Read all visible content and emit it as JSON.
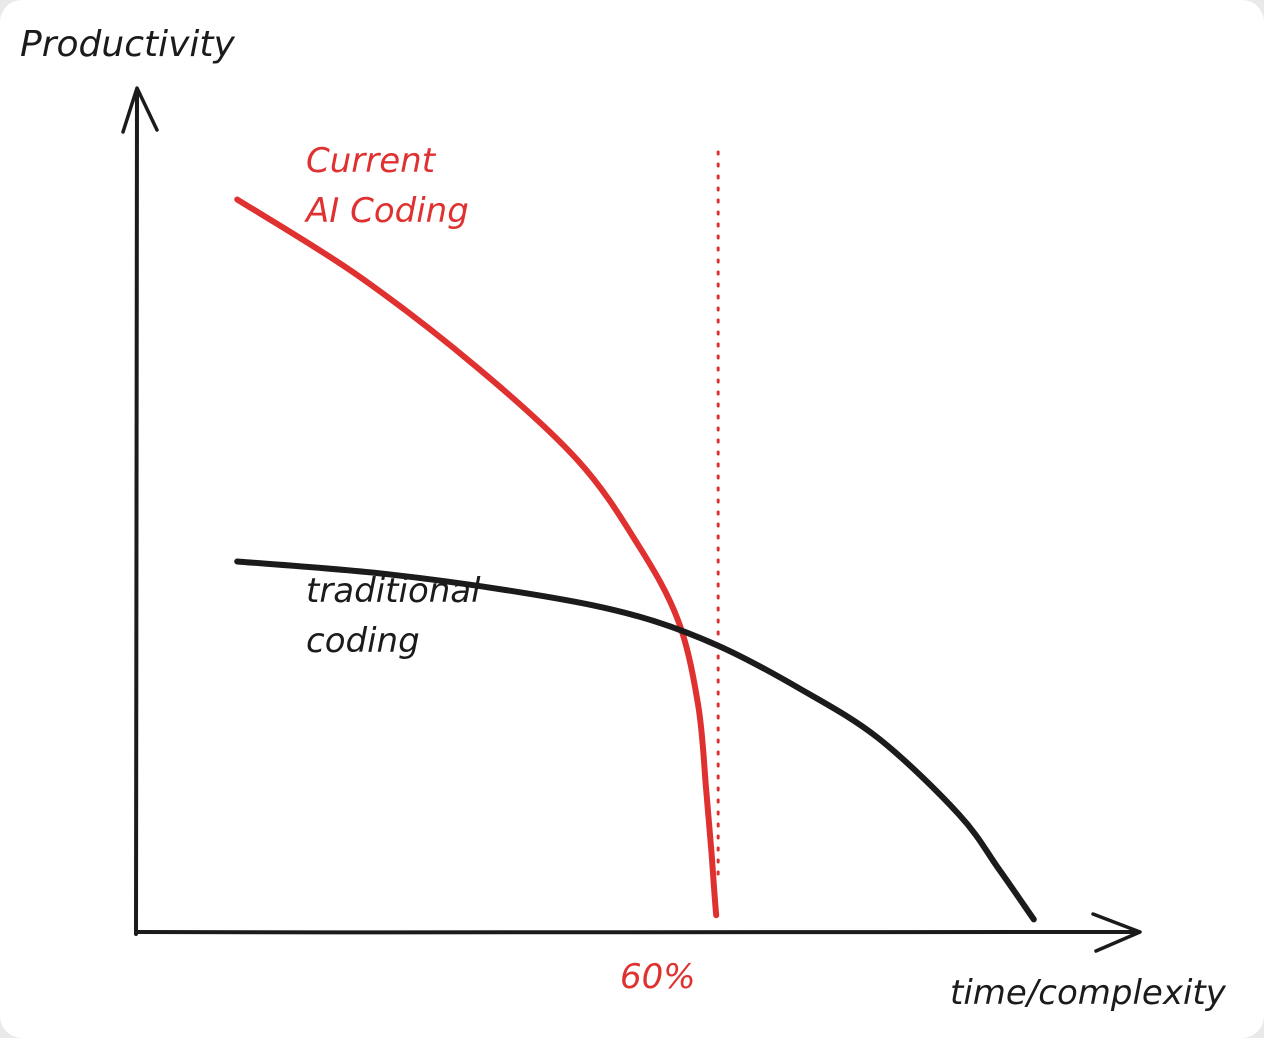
{
  "chart_data": {
    "type": "line",
    "title": "",
    "ylabel": "Productivity",
    "xlabel": "time/complexity",
    "grid": false,
    "legend": "none",
    "xlim": [
      0,
      100
    ],
    "ylim": [
      0,
      100
    ],
    "colors": {
      "ai": "#e03131",
      "traditional": "#1b1b1b",
      "axes": "#1b1b1b"
    },
    "series": [
      {
        "name": "Current AI Coding",
        "label_lines": [
          "Current",
          "AI Coding"
        ],
        "color": "#e03131",
        "x": [
          10.0,
          22.0,
          34.0,
          44.0,
          50.0,
          54.0,
          56.0,
          56.8,
          57.3,
          57.6,
          57.8
        ],
        "y": [
          87.0,
          78.0,
          67.0,
          56.0,
          46.0,
          37.0,
          27.0,
          17.0,
          10.0,
          5.0,
          2.0
        ]
      },
      {
        "name": "traditional coding",
        "label_lines": [
          "traditional",
          "coding"
        ],
        "color": "#1b1b1b",
        "x": [
          10.0,
          25.0,
          40.0,
          50.0,
          58.0,
          66.0,
          74.0,
          82.0,
          86.0,
          89.5
        ],
        "y": [
          44.0,
          42.5,
          40.0,
          37.5,
          34.0,
          29.0,
          23.0,
          14.0,
          7.5,
          1.5
        ]
      }
    ],
    "threshold": {
      "x": 58,
      "label": "60%",
      "style": "dotted",
      "color": "#e03131"
    }
  }
}
